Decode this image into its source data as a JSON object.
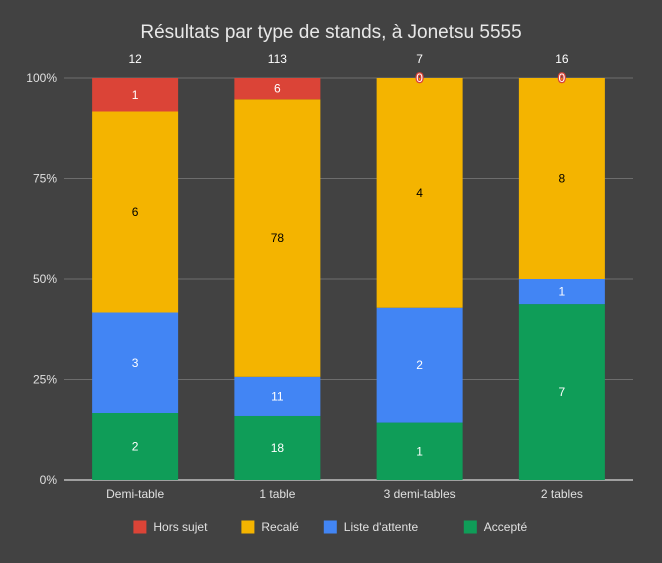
{
  "chart_data": {
    "type": "bar",
    "stacked": "percent",
    "title": "Résultats par type de stands, à Jonetsu 5555",
    "xlabel": "",
    "ylabel": "",
    "categories": [
      "Demi-table",
      "1 table",
      "3 demi-tables",
      "2 tables"
    ],
    "totals": [
      "12",
      "113",
      "7",
      "16"
    ],
    "y_ticks": [
      "0%",
      "25%",
      "50%",
      "75%",
      "100%"
    ],
    "ylim": [
      0,
      100
    ],
    "series": [
      {
        "name": "Accepté",
        "color": "#0f9d58",
        "label_color": "#ffffff",
        "values": [
          2,
          18,
          1,
          7
        ]
      },
      {
        "name": "Liste d'attente",
        "color": "#4285f4",
        "label_color": "#ffffff",
        "values": [
          3,
          11,
          2,
          1
        ]
      },
      {
        "name": "Recalé",
        "color": "#f4b400",
        "label_color": "#000000",
        "values": [
          6,
          78,
          4,
          8
        ]
      },
      {
        "name": "Hors sujet",
        "color": "#db4437",
        "label_color": "#ffffff",
        "values": [
          1,
          6,
          0,
          0
        ]
      }
    ],
    "legend_order": [
      3,
      2,
      1,
      0
    ],
    "legend_position": "bottom",
    "grid": true
  }
}
